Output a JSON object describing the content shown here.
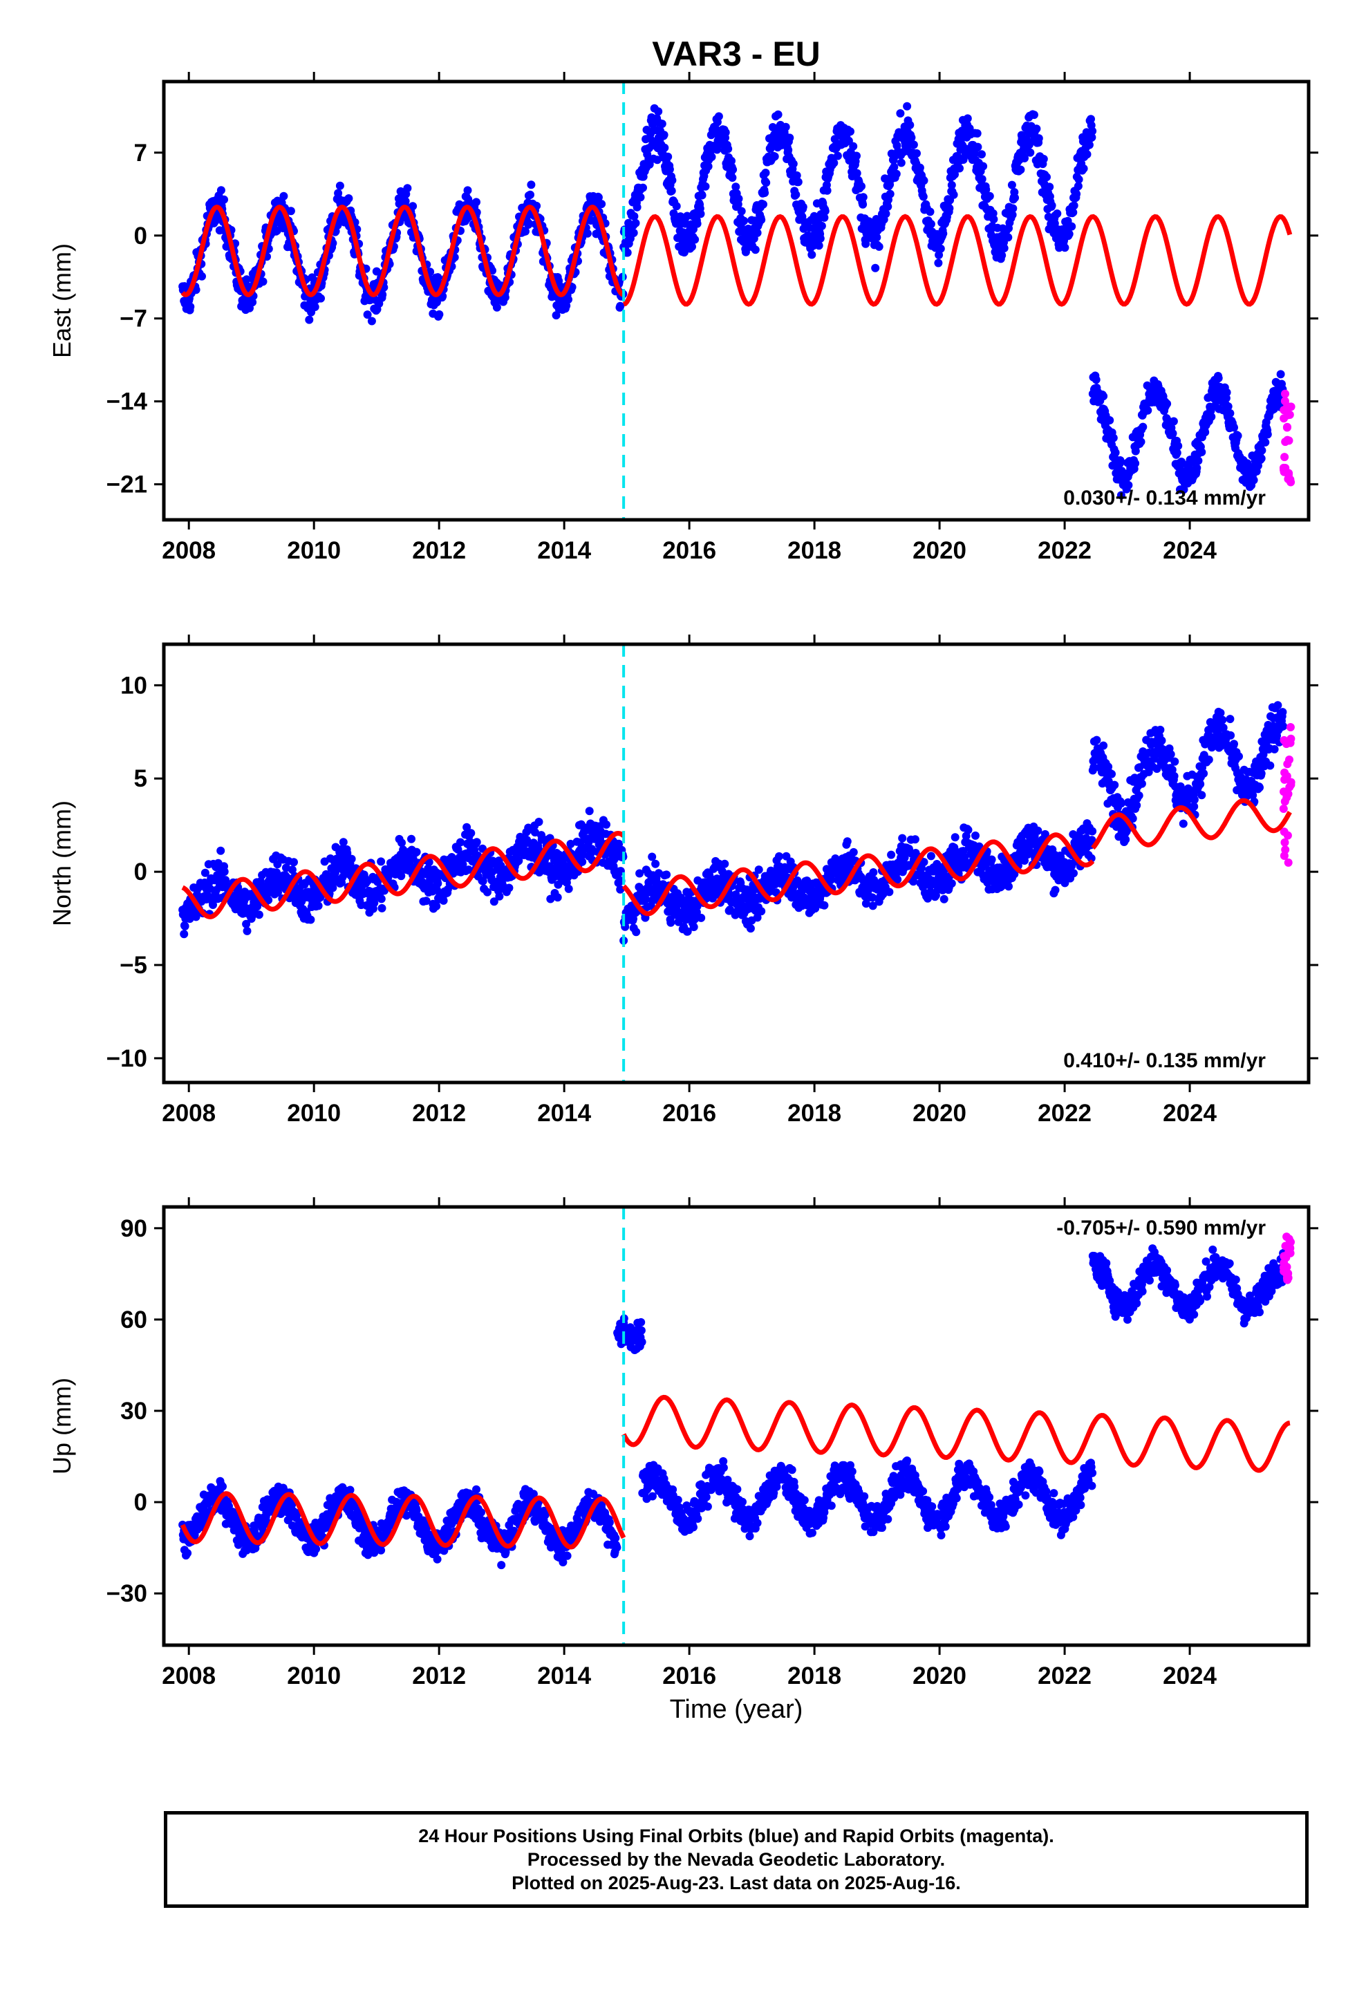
{
  "title": "VAR3 - EU",
  "x_axis_title": "Time (year)",
  "footer": {
    "line1": "24 Hour Positions Using Final Orbits (blue) and Rapid Orbits (magenta).",
    "line2": "Processed by the Nevada Geodetic Laboratory.",
    "line3": "Plotted on 2025-Aug-23. Last data on 2025-Aug-16."
  },
  "colors": {
    "final_orbits": "#0000ff",
    "rapid_orbits": "#ff00ff",
    "model": "#ff0000",
    "offset_marker": "#00e5ee"
  },
  "chart_data": [
    {
      "type": "scatter",
      "panel": "east",
      "ylabel": "East (mm)",
      "xlim": [
        2007.6,
        2025.9
      ],
      "ylim": [
        -24,
        13
      ],
      "x_ticks": [
        2008,
        2010,
        2012,
        2014,
        2016,
        2018,
        2020,
        2022,
        2024
      ],
      "y_ticks": [
        7,
        0,
        -7,
        -14,
        -21
      ],
      "y_tick_labels": [
        "7",
        "0",
        "−7",
        "−14",
        "−21"
      ],
      "rate_label": "0.030+/- 0.134 mm/yr",
      "offset_year": 2014.95,
      "model": {
        "segments": [
          {
            "x": [
              2007.9,
              2014.95
            ],
            "center": -1.3,
            "amplitude": 3.7,
            "phase_peak": 0.45
          },
          {
            "x": [
              2014.95,
              2025.6
            ],
            "center": -2.1,
            "amplitude": 3.7,
            "phase_peak": 0.45
          }
        ]
      },
      "series": [
        {
          "orbit": "final",
          "segments": [
            {
              "x": [
                2007.9,
                2014.95
              ],
              "center": -1.5,
              "amplitude": 3.8,
              "spread": 1.6
            },
            {
              "x": [
                2014.95,
                2022.45
              ],
              "center": 4.2,
              "amplitude": 4.6,
              "spread": 1.8
            },
            {
              "x": [
                2022.45,
                2025.5
              ],
              "center": -16.7,
              "amplitude": 3.6,
              "spread": 1.4
            }
          ]
        },
        {
          "orbit": "rapid",
          "x": [
            2025.5,
            2025.62
          ],
          "y_range": [
            -21,
            -13
          ]
        }
      ]
    },
    {
      "type": "scatter",
      "panel": "north",
      "ylabel": "North (mm)",
      "xlim": [
        2007.6,
        2025.9
      ],
      "ylim": [
        -11.3,
        12.2
      ],
      "x_ticks": [
        2008,
        2010,
        2012,
        2014,
        2016,
        2018,
        2020,
        2022,
        2024
      ],
      "y_ticks": [
        10,
        5,
        0,
        -5,
        -10
      ],
      "y_tick_labels": [
        "10",
        "5",
        "0",
        "−5",
        "−10"
      ],
      "rate_label": "0.410+/- 0.135 mm/yr",
      "offset_year": 2014.95,
      "model": {
        "segments": [
          {
            "x": [
              2007.9,
              2014.95
            ],
            "start": -1.7,
            "end": 1.2,
            "amplitude": 0.9,
            "phase_peak": 0.85
          },
          {
            "x": [
              2014.95,
              2022.45
            ],
            "start": -1.5,
            "end": 1.3,
            "amplitude": 0.9,
            "phase_peak": 0.85
          },
          {
            "x": [
              2022.45,
              2025.6
            ],
            "start": 2.0,
            "end": 3.2,
            "amplitude": 0.9,
            "phase_peak": 0.85
          }
        ]
      },
      "series": [
        {
          "orbit": "final",
          "segments": [
            {
              "x": [
                2007.9,
                2014.95
              ],
              "start": -1.5,
              "end": 1.2,
              "amplitude": 0.8,
              "spread": 1.2
            },
            {
              "x": [
                2014.95,
                2022.45
              ],
              "start": -1.8,
              "end": 1.2,
              "amplitude": 0.8,
              "spread": 1.1
            },
            {
              "x": [
                2022.45,
                2025.5
              ],
              "start": 4.5,
              "end": 6.5,
              "amplitude": 1.8,
              "spread": 1.2
            }
          ]
        },
        {
          "orbit": "rapid",
          "x": [
            2025.5,
            2025.62
          ],
          "y_range": [
            0,
            8
          ]
        }
      ]
    },
    {
      "type": "scatter",
      "panel": "up",
      "ylabel": "Up (mm)",
      "xlim": [
        2007.6,
        2025.9
      ],
      "ylim": [
        -47,
        97
      ],
      "x_ticks": [
        2008,
        2010,
        2012,
        2014,
        2016,
        2018,
        2020,
        2022,
        2024
      ],
      "y_ticks": [
        90,
        60,
        30,
        0,
        -30
      ],
      "y_tick_labels": [
        "90",
        "60",
        "30",
        "0",
        "−30"
      ],
      "rate_label": "-0.705+/- 0.590 mm/yr",
      "offset_year": 2014.95,
      "model": {
        "segments": [
          {
            "x": [
              2007.9,
              2014.95
            ],
            "start": -5,
            "end": -7,
            "amplitude": 8,
            "phase_peak": 0.6
          },
          {
            "x": [
              2014.95,
              2025.6
            ],
            "start": 27,
            "end": 18,
            "amplitude": 8,
            "phase_peak": 0.6
          }
        ]
      },
      "series": [
        {
          "orbit": "final",
          "segments": [
            {
              "x": [
                2007.9,
                2014.85
              ],
              "start": -5,
              "end": -8,
              "amplitude": 7,
              "spread": 5
            },
            {
              "x": [
                2014.85,
                2015.25
              ],
              "start": 55,
              "end": 55,
              "amplitude": 0,
              "spread": 5
            },
            {
              "x": [
                2015.25,
                2022.45
              ],
              "start": 1,
              "end": 2,
              "amplitude": 7,
              "spread": 5
            },
            {
              "x": [
                2022.45,
                2025.5
              ],
              "start": 72,
              "end": 70,
              "amplitude": 7,
              "spread": 5
            }
          ]
        },
        {
          "orbit": "rapid",
          "x": [
            2025.5,
            2025.62
          ],
          "y_range": [
            72,
            90
          ]
        }
      ]
    }
  ]
}
